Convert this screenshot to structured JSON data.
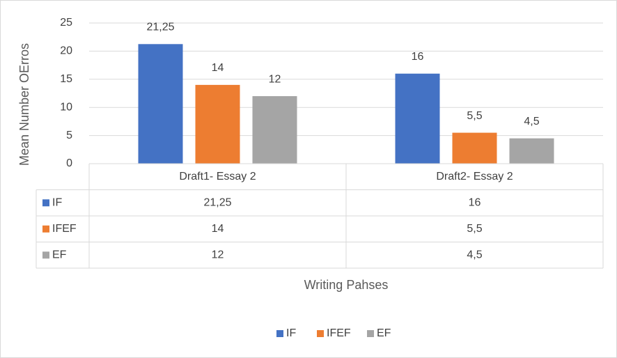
{
  "chart_data": {
    "type": "bar",
    "categories": [
      "Draft1- Essay 2",
      "Draft2- Essay 2"
    ],
    "series": [
      {
        "name": "IF",
        "color": "#4472c4",
        "values": [
          21.25,
          16
        ],
        "value_labels": [
          "21,25",
          "16"
        ]
      },
      {
        "name": "IFEF",
        "color": "#ed7d31",
        "values": [
          14,
          5.5
        ],
        "value_labels": [
          "14",
          "5,5"
        ]
      },
      {
        "name": "EF",
        "color": "#a5a5a5",
        "values": [
          12,
          4.5
        ],
        "value_labels": [
          "12",
          "4,5"
        ]
      }
    ],
    "ylabel": "Mean Number OErros",
    "xlabel": "Writing Pahses",
    "ylim": [
      0,
      25
    ],
    "yticks": [
      0,
      5,
      10,
      15,
      20,
      25
    ],
    "grid": true,
    "legend": "bottom",
    "data_table": true
  }
}
